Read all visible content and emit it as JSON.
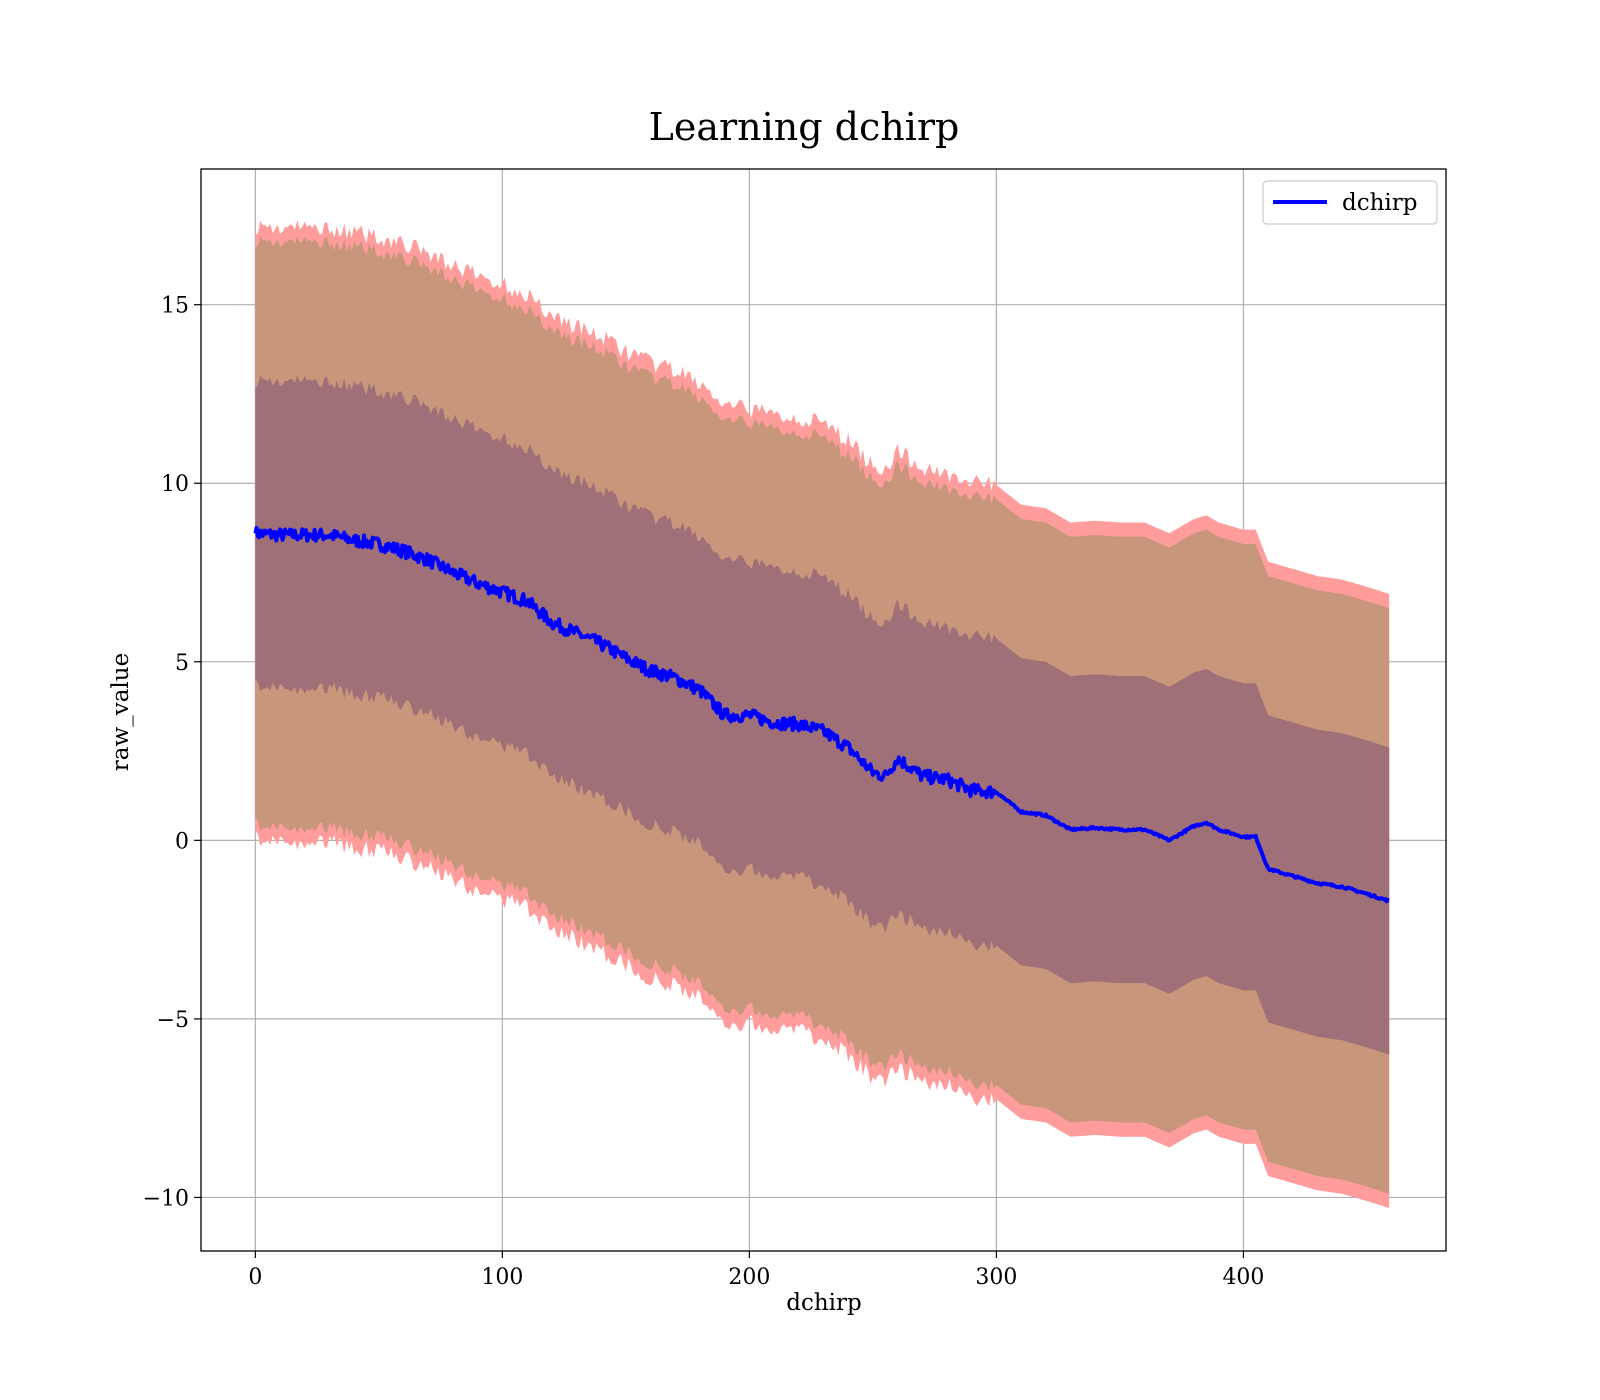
{
  "chart_data": {
    "type": "line",
    "title": "Learning dchirp",
    "xlabel": "dchirp",
    "ylabel": "raw_value",
    "xlim": [
      -22,
      482
    ],
    "ylim": [
      -11.5,
      18.8
    ],
    "xticks": [
      0,
      100,
      200,
      300,
      400
    ],
    "yticks": [
      -10,
      -5,
      0,
      5,
      10,
      15
    ],
    "xtick_labels": [
      "0",
      "100",
      "200",
      "300",
      "400"
    ],
    "ytick_labels": [
      "−10",
      "−5",
      "0",
      "5",
      "10",
      "15"
    ],
    "grid": true,
    "legend_position": "top-right",
    "colors": {
      "line": "#0000ff",
      "outer_band": "#ff9c9c",
      "middle_band": "#c8967a",
      "inner_band": "#a07078"
    },
    "series": [
      {
        "name": "dchirp",
        "x": [
          0,
          10,
          20,
          30,
          40,
          50,
          60,
          70,
          80,
          90,
          100,
          110,
          120,
          130,
          140,
          150,
          160,
          170,
          180,
          190,
          200,
          210,
          220,
          230,
          240,
          250,
          255,
          260,
          270,
          280,
          290,
          300,
          310,
          320,
          330,
          340,
          350,
          360,
          370,
          380,
          385,
          390,
          400,
          405,
          410,
          420,
          430,
          440,
          450,
          459
        ],
        "y": [
          8.6,
          8.55,
          8.55,
          8.55,
          8.4,
          8.3,
          8.1,
          7.85,
          7.5,
          7.2,
          6.95,
          6.7,
          6.1,
          5.8,
          5.5,
          5.1,
          4.75,
          4.55,
          4.2,
          3.5,
          3.5,
          3.3,
          3.25,
          3.05,
          2.6,
          1.9,
          1.8,
          2.3,
          1.8,
          1.7,
          1.4,
          1.35,
          0.8,
          0.7,
          0.3,
          0.35,
          0.3,
          0.3,
          0.0,
          0.4,
          0.5,
          0.3,
          0.1,
          0.1,
          -0.8,
          -1.0,
          -1.2,
          -1.3,
          -1.5,
          -1.7
        ]
      }
    ],
    "band_widths": {
      "inner": 4.3,
      "middle": 8.2,
      "outer": 8.6
    }
  }
}
